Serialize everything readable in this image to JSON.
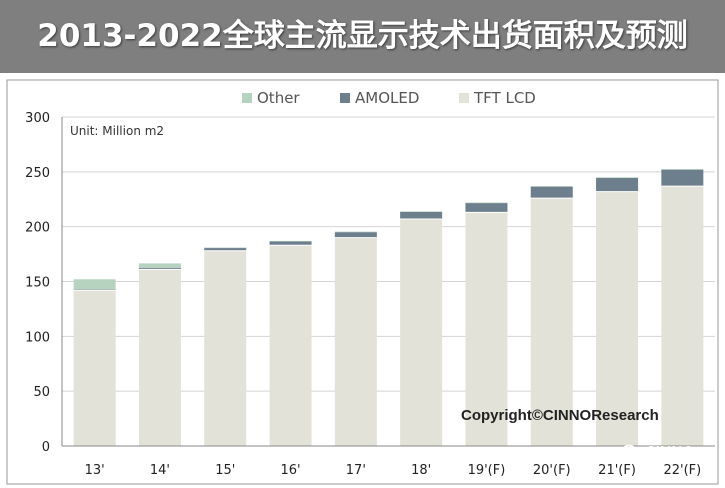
{
  "title": "2013-2022全球主流显示技术出货面积及预测",
  "unit_label": "Unit:  Million m2",
  "copyright": "Copyright©CINNOResearch",
  "watermark": "CINNO",
  "colors": {
    "title_bar": "#7f7f7f",
    "tft_lcd": "#e2e2d9",
    "amoled": "#6d7f8c",
    "other": "#b5d3bf",
    "grid": "#d4d4d4",
    "axis": "#888888"
  },
  "chart_data": {
    "type": "bar",
    "stacked": true,
    "categories": [
      "13'",
      "14'",
      "15'",
      "16'",
      "17'",
      "18'",
      "19'(F)",
      "20'(F)",
      "21'(F)",
      "22'(F)"
    ],
    "series": [
      {
        "name": "TFT LCD",
        "color": "#e2e2d9",
        "values": [
          142,
          161,
          178,
          183,
          190,
          207,
          213,
          226,
          232,
          237
        ]
      },
      {
        "name": "AMOLED",
        "color": "#6d7f8c",
        "values": [
          1,
          1.5,
          2.5,
          3.5,
          5,
          6.5,
          8.5,
          10.5,
          12.5,
          15
        ]
      },
      {
        "name": "Other",
        "color": "#b5d3bf",
        "values": [
          9,
          4,
          0.5,
          0.5,
          0.5,
          0.5,
          0.5,
          0.5,
          0.5,
          0.5
        ]
      }
    ],
    "legend_order": [
      "Other",
      "AMOLED",
      "TFT LCD"
    ],
    "legend_position": "top-center",
    "yticks": [
      0,
      50,
      100,
      150,
      200,
      250,
      300
    ],
    "ylim": [
      0,
      300
    ],
    "grid": true
  }
}
